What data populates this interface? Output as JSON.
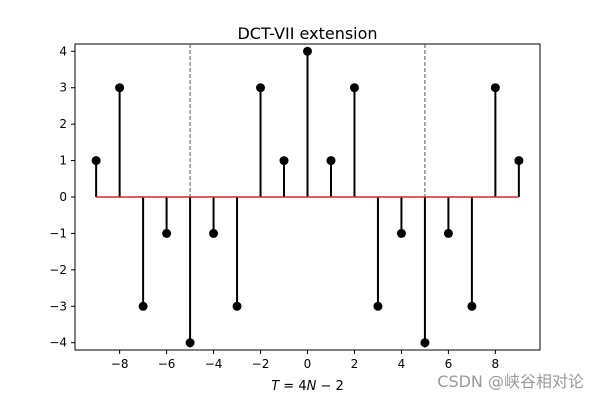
{
  "chart_data": {
    "type": "stem",
    "title": "DCT-VII extension",
    "xlabel": "T = 4N − 2",
    "ylabel": "",
    "xlim": [
      -9.9,
      9.9
    ],
    "ylim": [
      -4.2,
      4.2
    ],
    "x_ticks": [
      -8,
      -6,
      -4,
      -2,
      0,
      2,
      4,
      6,
      8
    ],
    "x_tick_labels": [
      "−8",
      "−6",
      "−4",
      "−2",
      "0",
      "2",
      "4",
      "6",
      "8"
    ],
    "y_ticks": [
      -4,
      -3,
      -2,
      -1,
      0,
      1,
      2,
      3,
      4
    ],
    "y_tick_labels": [
      "−4",
      "−3",
      "−2",
      "−1",
      "0",
      "1",
      "2",
      "3",
      "4"
    ],
    "x": [
      -9,
      -8,
      -7,
      -6,
      -5,
      -4,
      -3,
      -2,
      -1,
      0,
      1,
      2,
      3,
      4,
      5,
      6,
      7,
      8,
      9
    ],
    "values": [
      1,
      3,
      -3,
      -1,
      -4,
      -1,
      -3,
      3,
      1,
      4,
      1,
      3,
      -3,
      -1,
      -4,
      -1,
      -3,
      3,
      1
    ],
    "baseline": {
      "y": 0,
      "x_range": [
        -9,
        9
      ],
      "color": "#d62728"
    },
    "vlines": [
      -5,
      5
    ],
    "colors": {
      "stem": "#000000",
      "marker": "#000000",
      "vline": "#555555"
    }
  },
  "watermark": "CSDN @峡谷相对论"
}
